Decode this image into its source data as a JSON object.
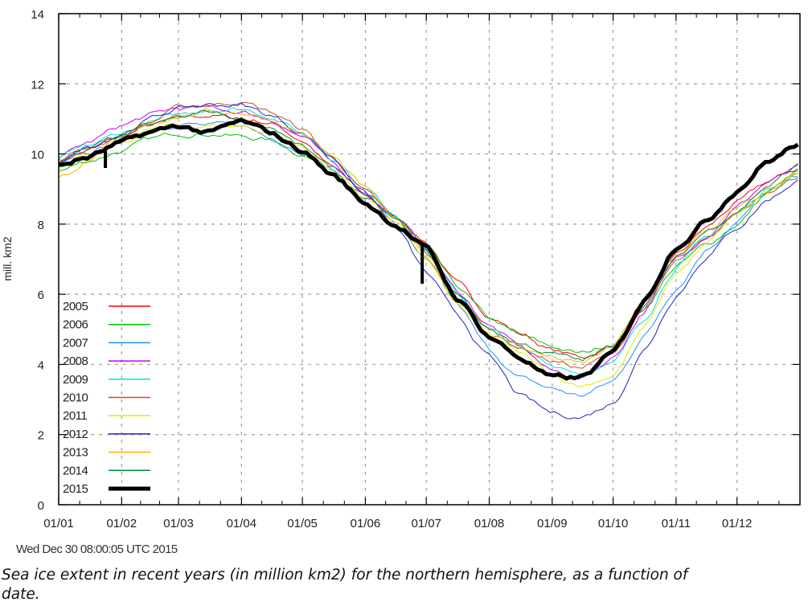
{
  "chart_data": {
    "type": "line",
    "title": "",
    "xlabel": "",
    "ylabel": "mill. km2",
    "ylim": [
      0,
      14
    ],
    "xlim_day_of_year": [
      1,
      366
    ],
    "yticks": [
      0,
      2,
      4,
      6,
      8,
      10,
      12,
      14
    ],
    "xtick_labels": [
      "01/01",
      "01/02",
      "01/03",
      "01/04",
      "01/05",
      "01/06",
      "01/07",
      "01/08",
      "01/09",
      "01/10",
      "01/11",
      "01/12"
    ],
    "xtick_days": [
      1,
      32,
      60,
      91,
      121,
      152,
      182,
      213,
      244,
      274,
      305,
      335
    ],
    "grid": true,
    "legend_position": "bottom-left",
    "x_days": [
      1,
      15,
      32,
      46,
      60,
      75,
      91,
      105,
      121,
      136,
      152,
      167,
      182,
      197,
      213,
      228,
      244,
      258,
      274,
      289,
      305,
      320,
      335,
      350,
      366
    ],
    "series": [
      {
        "name": "2005",
        "color": "#ff0000",
        "width": 1,
        "values": [
          9.8,
          10.1,
          10.5,
          10.8,
          11.0,
          11.1,
          11.0,
          10.9,
          10.4,
          9.6,
          8.8,
          8.2,
          7.5,
          6.3,
          5.4,
          4.9,
          4.4,
          4.2,
          4.5,
          5.8,
          7.1,
          7.9,
          8.6,
          9.2,
          9.6
        ]
      },
      {
        "name": "2006",
        "color": "#00c000",
        "width": 1,
        "values": [
          9.5,
          9.8,
          10.1,
          10.4,
          10.6,
          10.6,
          10.5,
          10.4,
          10.0,
          9.5,
          8.8,
          8.2,
          7.3,
          6.2,
          5.3,
          4.8,
          4.5,
          4.3,
          4.6,
          5.6,
          6.8,
          7.4,
          8.0,
          8.9,
          9.5
        ]
      },
      {
        "name": "2007",
        "color": "#1e90ff",
        "width": 1,
        "values": [
          9.7,
          10.0,
          10.4,
          10.7,
          10.9,
          10.8,
          10.8,
          10.5,
          10.1,
          9.6,
          8.9,
          8.0,
          6.9,
          5.7,
          4.4,
          3.6,
          3.3,
          3.1,
          3.5,
          4.8,
          6.2,
          7.3,
          8.1,
          8.9,
          9.4
        ]
      },
      {
        "name": "2008",
        "color": "#c000ff",
        "width": 1,
        "values": [
          9.9,
          10.3,
          10.8,
          11.1,
          11.3,
          11.3,
          11.2,
          11.0,
          10.5,
          9.7,
          8.9,
          8.2,
          7.3,
          6.1,
          5.1,
          4.5,
          3.8,
          3.6,
          4.2,
          5.5,
          7.0,
          7.7,
          8.5,
          9.2,
          9.6
        ]
      },
      {
        "name": "2009",
        "color": "#00e0e0",
        "width": 1,
        "values": [
          9.9,
          10.2,
          10.6,
          10.9,
          11.1,
          11.3,
          11.3,
          11.1,
          10.6,
          9.9,
          9.0,
          8.3,
          7.3,
          6.0,
          5.0,
          4.4,
          4.0,
          3.8,
          4.0,
          5.3,
          6.8,
          7.6,
          8.3,
          9.0,
          9.5
        ]
      },
      {
        "name": "2010",
        "color": "#c8501e",
        "width": 1,
        "values": [
          9.8,
          10.2,
          10.5,
          10.9,
          11.3,
          11.4,
          11.5,
          11.2,
          10.7,
          9.9,
          8.9,
          8.1,
          7.2,
          5.9,
          4.9,
          4.5,
          4.1,
          3.9,
          4.3,
          5.6,
          6.9,
          7.5,
          8.3,
          9.0,
          9.4
        ]
      },
      {
        "name": "2011",
        "color": "#e6e600",
        "width": 1,
        "values": [
          9.6,
          9.9,
          10.3,
          10.7,
          10.8,
          10.8,
          10.8,
          10.6,
          10.2,
          9.5,
          8.8,
          8.0,
          7.0,
          5.7,
          4.8,
          4.3,
          3.7,
          3.4,
          3.7,
          5.0,
          6.6,
          7.4,
          8.3,
          8.9,
          9.4
        ]
      },
      {
        "name": "2012",
        "color": "#2020c8",
        "width": 1,
        "values": [
          9.8,
          10.2,
          10.6,
          11.0,
          11.3,
          11.4,
          11.4,
          11.1,
          10.6,
          9.9,
          8.9,
          7.9,
          6.6,
          5.4,
          4.2,
          3.1,
          2.6,
          2.5,
          2.9,
          4.4,
          6.0,
          7.1,
          7.9,
          8.7,
          9.3
        ]
      },
      {
        "name": "2013",
        "color": "#ffb000",
        "width": 1,
        "values": [
          9.3,
          9.8,
          10.4,
          10.9,
          11.1,
          11.2,
          11.2,
          11.0,
          10.6,
          9.9,
          9.0,
          8.1,
          7.1,
          5.9,
          5.0,
          4.5,
          4.2,
          4.0,
          4.5,
          5.8,
          7.1,
          7.8,
          8.4,
          9.0,
          9.5
        ]
      },
      {
        "name": "2014",
        "color": "#008c3c",
        "width": 1,
        "values": [
          9.8,
          10.1,
          10.5,
          10.8,
          11.0,
          11.2,
          11.0,
          10.8,
          10.2,
          9.5,
          8.7,
          8.1,
          7.2,
          6.0,
          5.0,
          4.6,
          4.3,
          4.1,
          4.5,
          5.7,
          7.0,
          7.8,
          8.4,
          9.1,
          9.7
        ]
      },
      {
        "name": "2015",
        "color": "#000000",
        "width": 5,
        "values": [
          9.7,
          9.9,
          10.3,
          10.6,
          10.8,
          10.6,
          10.9,
          10.6,
          10.1,
          9.4,
          8.6,
          8.0,
          7.3,
          5.9,
          4.8,
          4.2,
          3.6,
          3.6,
          4.3,
          5.8,
          7.4,
          8.1,
          9.0,
          9.8,
          10.3
        ]
      }
    ]
  },
  "footer": {
    "timestamp": "Wed Dec 30 08:00:05 UTC 2015",
    "caption": "Sea ice extent in recent years (in million km2) for the northern hemisphere, as a function of date."
  }
}
